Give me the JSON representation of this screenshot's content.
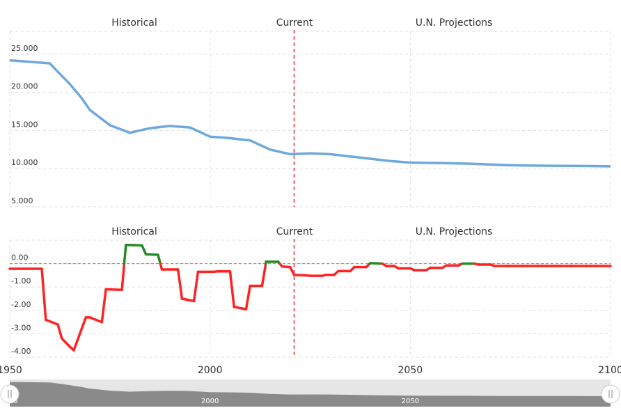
{
  "colors": {
    "population_line": "#6fa8dc",
    "growth_negative": "#ff2222",
    "growth_positive": "#228b22",
    "current_marker": "#e03030",
    "grid": "#dddddd",
    "navigator_fill": "#808080",
    "navigator_bg": "#e6e6e6"
  },
  "chart_data": [
    {
      "type": "line",
      "section_labels": [
        "Historical",
        "Current",
        "U.N. Projections"
      ],
      "current_year": 2021,
      "xlim": [
        1950,
        2100
      ],
      "ylim": [
        5000,
        28000
      ],
      "y_ticks": [
        "5.000",
        "10.000",
        "15.000",
        "20.000",
        "25.000"
      ],
      "y_tick_values": [
        5000,
        10000,
        15000,
        20000,
        25000
      ],
      "x": [
        1950,
        1955,
        1960,
        1962,
        1965,
        1968,
        1970,
        1972,
        1975,
        1980,
        1985,
        1990,
        1995,
        2000,
        2005,
        2010,
        2015,
        2020,
        2025,
        2030,
        2035,
        2040,
        2045,
        2050,
        2055,
        2060,
        2065,
        2070,
        2075,
        2080,
        2085,
        2090,
        2095,
        2100
      ],
      "series": [
        {
          "values": [
            24200,
            24000,
            23800,
            22700,
            21100,
            19200,
            17700,
            16900,
            15700,
            14700,
            15300,
            15600,
            15400,
            14200,
            14000,
            13700,
            12500,
            11900,
            12000,
            11900,
            11600,
            11300,
            11000,
            10800,
            10750,
            10700,
            10650,
            10550,
            10450,
            10400,
            10380,
            10360,
            10340,
            10300
          ]
        }
      ]
    },
    {
      "type": "line",
      "section_labels": [
        "Historical",
        "Current",
        "U.N. Projections"
      ],
      "current_year": 2021,
      "xlim": [
        1950,
        2100
      ],
      "ylim": [
        -4.0,
        1.0
      ],
      "x_ticks": [
        "1950",
        "2000",
        "2050",
        "2100"
      ],
      "x_tick_values": [
        1950,
        2000,
        2050,
        2100
      ],
      "y_ticks": [
        "-4.00",
        "-3.00",
        "-2.00",
        "-1.00",
        "0.00"
      ],
      "y_tick_values": [
        -4,
        -3,
        -2,
        -1,
        0
      ],
      "x": [
        1950,
        1958,
        1959,
        1962,
        1963,
        1965,
        1966,
        1969,
        1970,
        1973,
        1974,
        1978,
        1979,
        1983,
        1984,
        1987,
        1988,
        1992,
        1993,
        1996,
        1997,
        2001,
        2002,
        2005,
        2006,
        2009,
        2010,
        2013,
        2014,
        2017,
        2018,
        2020,
        2021,
        2024,
        2025,
        2028,
        2029,
        2031,
        2032,
        2035,
        2036,
        2039,
        2040,
        2043,
        2044,
        2046,
        2047,
        2050,
        2051,
        2054,
        2055,
        2058,
        2059,
        2062,
        2063,
        2066,
        2067,
        2070,
        2071,
        2074,
        2075,
        2078,
        2079,
        2082,
        2083,
        2086,
        2087,
        2090,
        2091,
        2094,
        2095,
        2100
      ],
      "series": [
        {
          "values": [
            -0.22,
            -0.22,
            -2.4,
            -2.6,
            -3.2,
            -3.55,
            -3.7,
            -2.3,
            -2.3,
            -2.5,
            -1.1,
            -1.12,
            0.8,
            0.78,
            0.4,
            0.38,
            -0.25,
            -0.25,
            -1.5,
            -1.6,
            -0.35,
            -0.35,
            -0.33,
            -0.33,
            -1.85,
            -1.95,
            -0.95,
            -0.95,
            0.08,
            0.08,
            -0.12,
            -0.15,
            -0.48,
            -0.5,
            -0.52,
            -0.52,
            -0.48,
            -0.48,
            -0.32,
            -0.32,
            -0.15,
            -0.15,
            0.02,
            0.0,
            -0.1,
            -0.1,
            -0.2,
            -0.2,
            -0.28,
            -0.28,
            -0.18,
            -0.18,
            -0.08,
            -0.08,
            0.0,
            0.0,
            -0.04,
            -0.04,
            -0.1,
            -0.1,
            -0.1,
            -0.1,
            -0.1,
            -0.1,
            -0.1,
            -0.1,
            -0.1,
            -0.1,
            -0.1,
            -0.1,
            -0.1,
            -0.1
          ]
        }
      ]
    }
  ],
  "navigator": {
    "tick_labels": [
      "2000",
      "2050"
    ],
    "left_handle_label": "0",
    "handle_icon": "grip-lines-icon"
  }
}
